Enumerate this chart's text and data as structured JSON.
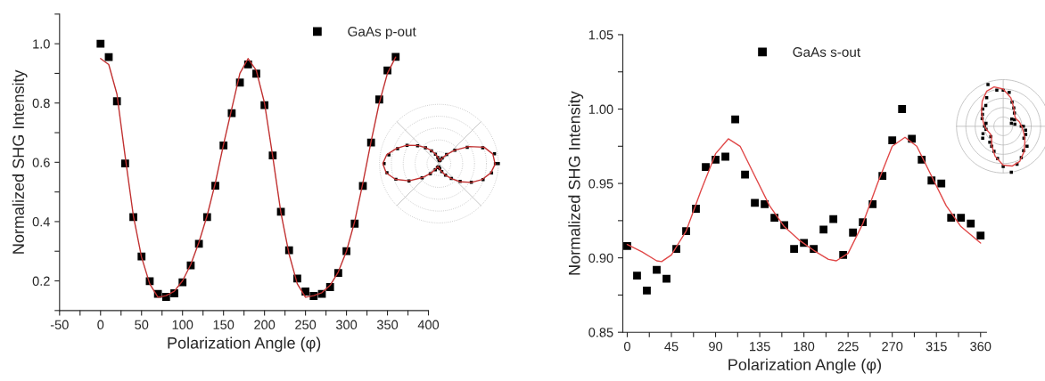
{
  "chart_data": [
    {
      "type": "scatter",
      "xlabel": "Polarization Angle (φ)",
      "ylabel": "Normalized SHG Intensity",
      "xlim": [
        -50,
        400
      ],
      "ylim": [
        0.1,
        1.1
      ],
      "xticks": [
        -50,
        {
          "value": -25,
          "label": null
        },
        0,
        {
          "value": 25,
          "label": null
        },
        50,
        {
          "value": 75,
          "label": null
        },
        100,
        {
          "value": 125,
          "label": null
        },
        150,
        {
          "value": 175,
          "label": null
        },
        200,
        {
          "value": 225,
          "label": null
        },
        250,
        {
          "value": 275,
          "label": null
        },
        300,
        {
          "value": 325,
          "label": null
        },
        350,
        {
          "value": 375,
          "label": null
        },
        400
      ],
      "yticks": [
        {
          "value": 0.1,
          "label": null
        },
        0.2,
        {
          "value": 0.3,
          "label": null
        },
        0.4,
        {
          "value": 0.5,
          "label": null
        },
        0.6,
        {
          "value": 0.7,
          "label": null
        },
        0.8,
        {
          "value": 0.9,
          "label": null
        },
        {
          "value": 1.0,
          "label": "1.0"
        },
        {
          "value": 1.1,
          "label": null
        }
      ],
      "legend": "top right",
      "grid": false,
      "series": [
        {
          "name": "GaAs p-out",
          "marker": "square",
          "color": "#000000",
          "x": [
            0,
            10,
            20,
            30,
            40,
            50,
            60,
            70,
            80,
            90,
            100,
            110,
            120,
            130,
            140,
            150,
            160,
            170,
            180,
            190,
            200,
            210,
            220,
            230,
            240,
            250,
            260,
            270,
            280,
            290,
            300,
            310,
            320,
            330,
            340,
            350,
            360
          ],
          "values": [
            1.0,
            0.955,
            0.806,
            0.596,
            0.415,
            0.282,
            0.199,
            0.156,
            0.146,
            0.158,
            0.195,
            0.252,
            0.325,
            0.415,
            0.521,
            0.657,
            0.766,
            0.869,
            0.93,
            0.899,
            0.793,
            0.623,
            0.433,
            0.303,
            0.208,
            0.164,
            0.149,
            0.156,
            0.179,
            0.227,
            0.3,
            0.393,
            0.52,
            0.667,
            0.812,
            0.91,
            0.956
          ]
        },
        {
          "type": "line",
          "color": "#c03030",
          "line_style": "solid",
          "x": [
            0,
            10,
            20,
            30,
            40,
            50,
            60,
            70,
            80,
            90,
            100,
            110,
            120,
            130,
            140,
            150,
            160,
            170,
            180,
            190,
            200,
            210,
            220,
            230,
            240,
            250,
            260,
            270,
            280,
            290,
            300,
            310,
            320,
            330,
            340,
            350,
            360
          ],
          "values": [
            0.95,
            0.93,
            0.83,
            0.62,
            0.42,
            0.28,
            0.19,
            0.145,
            0.15,
            0.165,
            0.2,
            0.255,
            0.33,
            0.42,
            0.53,
            0.66,
            0.78,
            0.9,
            0.95,
            0.91,
            0.8,
            0.62,
            0.43,
            0.29,
            0.19,
            0.145,
            0.15,
            0.16,
            0.185,
            0.23,
            0.3,
            0.4,
            0.53,
            0.67,
            0.8,
            0.9,
            0.955
          ]
        }
      ]
    },
    {
      "type": "scatter",
      "xlabel": "Polarization Angle (φ)",
      "ylabel": "Normalized SHG Intensity",
      "xlim": [
        -4.5,
        366
      ],
      "ylim": [
        0.85,
        1.05
      ],
      "xticks": [
        0,
        {
          "value": 22.5,
          "label": null
        },
        45,
        {
          "value": 67.5,
          "label": null
        },
        90,
        {
          "value": 112.5,
          "label": null
        },
        135,
        {
          "value": 157.5,
          "label": null
        },
        180,
        {
          "value": 202.5,
          "label": null
        },
        225,
        {
          "value": 247.5,
          "label": null
        },
        270,
        {
          "value": 292.5,
          "label": null
        },
        315,
        {
          "value": 337.5,
          "label": null
        },
        360
      ],
      "yticks": [
        0.85,
        {
          "value": 0.875,
          "label": null
        },
        {
          "value": 0.9,
          "label": "0.90"
        },
        {
          "value": 0.925,
          "label": null
        },
        0.95,
        {
          "value": 0.975,
          "label": null
        },
        {
          "value": 1.0,
          "label": "1.00"
        },
        {
          "value": 1.025,
          "label": null
        },
        1.05
      ],
      "legend": "top",
      "grid": false,
      "series": [
        {
          "name": "GaAs s-out",
          "marker": "square",
          "color": "#000000",
          "x": [
            0,
            10,
            20,
            30,
            40,
            50,
            60,
            70,
            80,
            90,
            100,
            110,
            120,
            130,
            140,
            150,
            160,
            170,
            180,
            190,
            200,
            210,
            220,
            230,
            240,
            250,
            260,
            270,
            280,
            290,
            300,
            310,
            320,
            330,
            340,
            350,
            360
          ],
          "values": [
            0.908,
            0.888,
            0.878,
            0.892,
            0.886,
            0.906,
            0.918,
            0.933,
            0.961,
            0.966,
            0.968,
            0.993,
            0.956,
            0.937,
            0.936,
            0.927,
            0.922,
            0.906,
            0.91,
            0.906,
            0.919,
            0.926,
            0.902,
            0.917,
            0.924,
            0.936,
            0.955,
            0.979,
            1.0,
            0.98,
            0.966,
            0.952,
            0.95,
            0.927,
            0.927,
            0.923,
            0.915
          ]
        },
        {
          "type": "line",
          "color": "#e04848",
          "line_style": "solid",
          "x": [
            0,
            15,
            30,
            35,
            45,
            60,
            75,
            90,
            103,
            115,
            130,
            145,
            160,
            175,
            190,
            205,
            213,
            225,
            240,
            255,
            270,
            283,
            295,
            310,
            325,
            340,
            360
          ],
          "values": [
            0.909,
            0.904,
            0.898,
            0.8975,
            0.902,
            0.918,
            0.945,
            0.97,
            0.98,
            0.975,
            0.955,
            0.935,
            0.921,
            0.912,
            0.905,
            0.899,
            0.898,
            0.903,
            0.923,
            0.95,
            0.975,
            0.981,
            0.975,
            0.955,
            0.935,
            0.921,
            0.91
          ]
        }
      ]
    }
  ]
}
